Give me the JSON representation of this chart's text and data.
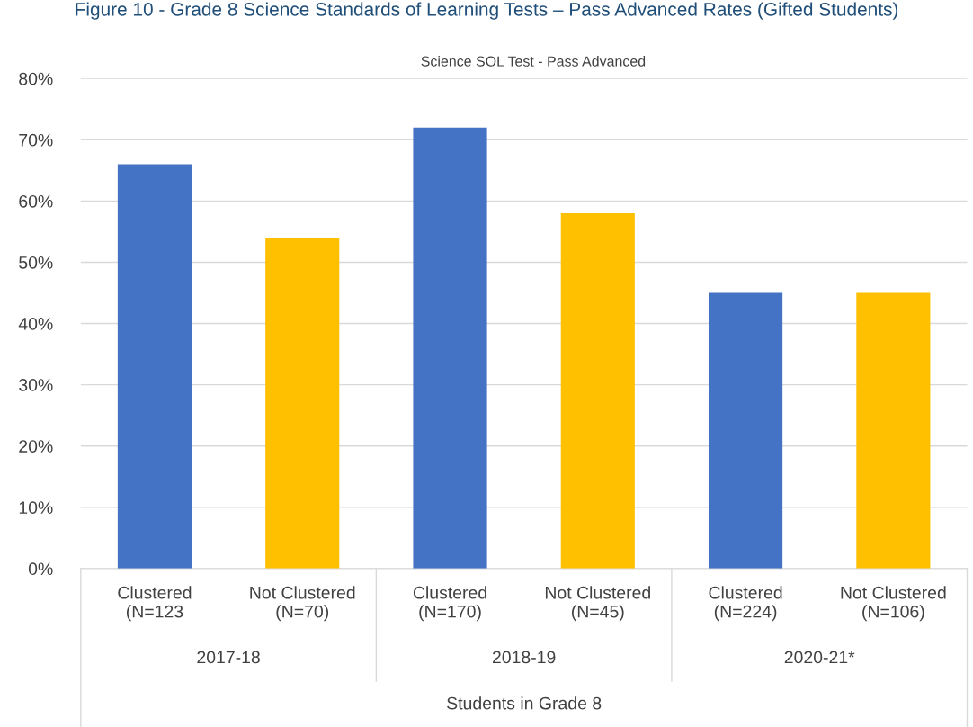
{
  "chart_data": {
    "type": "bar",
    "title": "Figure 10 - Grade 8 Science Standards of Learning Tests – Pass Advanced Rates (Gifted Students)",
    "subtitle": "Science SOL Test - Pass Advanced",
    "xlabel": "Students in Grade 8",
    "categories": [
      "Clustered\n(N=123",
      "Not Clustered\n(N=70)",
      "Clustered\n(N=170)",
      "Not Clustered\n(N=45)",
      "Clustered\n(N=224)",
      "Not Clustered\n(N=106)"
    ],
    "values": [
      66,
      54,
      72,
      58,
      45,
      45
    ],
    "colors": [
      "#4472c4",
      "#ffc000",
      "#4472c4",
      "#ffc000",
      "#4472c4",
      "#ffc000"
    ],
    "annotations": [
      "2017-18",
      "2018-19",
      "2020-21*"
    ],
    "ylim": [
      0,
      80
    ],
    "yticks": [
      {
        "value": 0,
        "label": "0%"
      },
      {
        "value": 10,
        "label": "10%"
      },
      {
        "value": 20,
        "label": "20%"
      },
      {
        "value": 30,
        "label": "30%"
      },
      {
        "value": 40,
        "label": "40%"
      },
      {
        "value": 50,
        "label": "50%"
      },
      {
        "value": 60,
        "label": "60%"
      },
      {
        "value": 70,
        "label": "70%"
      },
      {
        "value": 80,
        "label": "80%"
      }
    ],
    "grid": "y",
    "legend": false
  }
}
